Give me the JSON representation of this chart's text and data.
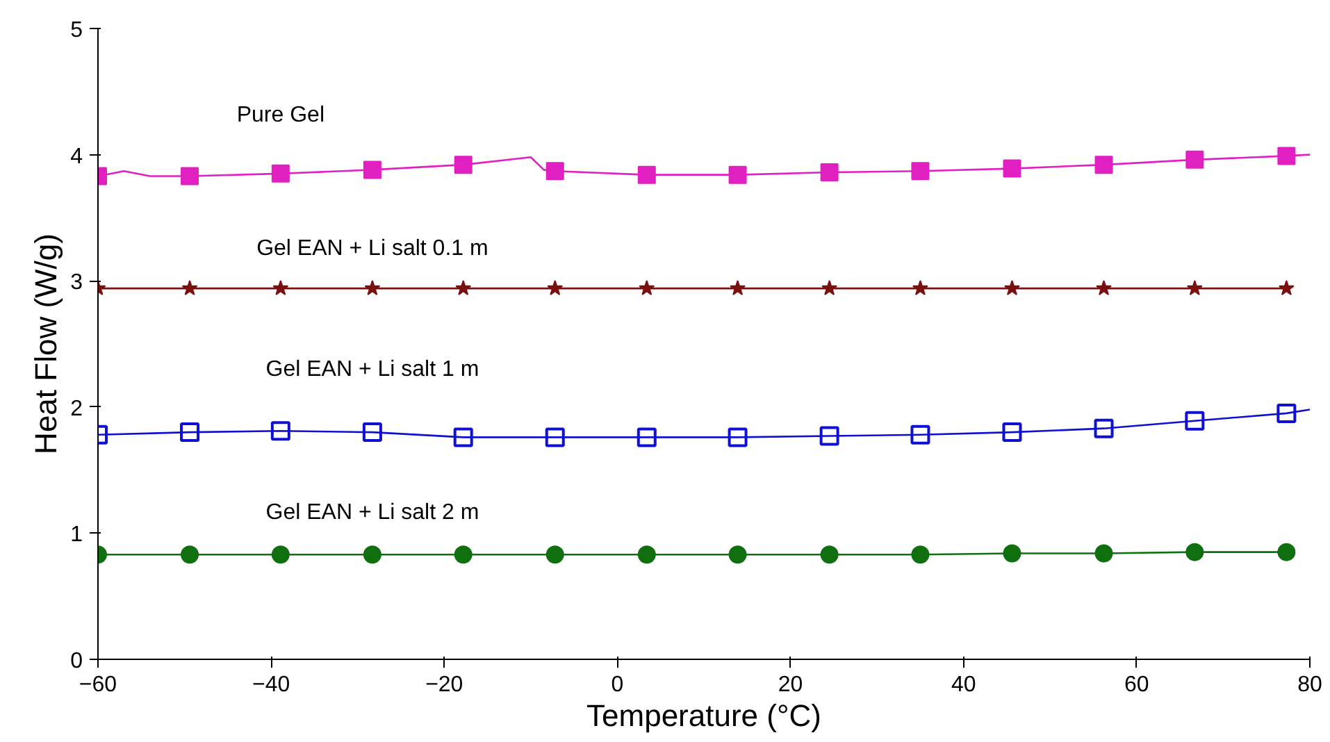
{
  "chart_data": {
    "type": "line",
    "xlabel": "Temperature (°C)",
    "ylabel": "Heat Flow (W/g)",
    "xlim": [
      -60,
      80
    ],
    "ylim": [
      0,
      5
    ],
    "xticks": [
      -60,
      -40,
      -20,
      0,
      20,
      40,
      60,
      80
    ],
    "yticks": [
      0,
      1,
      2,
      3,
      4,
      5
    ],
    "grid": false,
    "line_style": "solid",
    "series": [
      {
        "name": "Pure Gel",
        "color": "#e020c0",
        "marker": "none",
        "x": [
          -60,
          -57,
          -54,
          -49.4,
          -38.9,
          -28.3,
          -17.8,
          -10,
          -8.5,
          -7.2,
          3.4,
          13.9,
          24.5,
          35,
          45.6,
          56.2,
          66.7,
          77.3,
          80
        ],
        "values": [
          3.83,
          3.87,
          3.83,
          3.83,
          3.85,
          3.88,
          3.92,
          3.98,
          3.88,
          3.87,
          3.84,
          3.84,
          3.86,
          3.87,
          3.89,
          3.92,
          3.96,
          3.99,
          4.0
        ]
      },
      {
        "color": "#e020c0",
        "type": "scatter",
        "marker": "square",
        "x": [
          -60,
          -49.4,
          -38.9,
          -28.3,
          -17.8,
          -7.2,
          3.4,
          13.9,
          24.5,
          35,
          45.6,
          56.2,
          66.7,
          77.3
        ],
        "values": [
          3.83,
          3.83,
          3.85,
          3.88,
          3.92,
          3.87,
          3.84,
          3.84,
          3.86,
          3.87,
          3.89,
          3.92,
          3.96,
          3.99
        ]
      },
      {
        "name": "Gel EAN + Li salt 0.1 m",
        "color": "#7a1010",
        "marker": "star",
        "x": [
          -60,
          -49.4,
          -38.9,
          -28.3,
          -17.8,
          -7.2,
          3.4,
          13.9,
          24.5,
          35,
          45.6,
          56.2,
          66.7,
          77.3
        ],
        "values": [
          2.94,
          2.94,
          2.94,
          2.94,
          2.94,
          2.94,
          2.94,
          2.94,
          2.94,
          2.94,
          2.94,
          2.94,
          2.94,
          2.94
        ]
      },
      {
        "name": "Gel EAN + Li salt 1 m",
        "color": "#1010d0",
        "marker": "square_open",
        "x": [
          -60,
          -49.4,
          -38.9,
          -28.3,
          -17.8,
          -7.2,
          3.4,
          13.9,
          24.5,
          35,
          45.6,
          56.2,
          66.7,
          77.3,
          80
        ],
        "values": [
          1.78,
          1.8,
          1.81,
          1.8,
          1.76,
          1.76,
          1.76,
          1.76,
          1.77,
          1.78,
          1.8,
          1.83,
          1.89,
          1.95,
          1.98
        ]
      },
      {
        "name": "Gel EAN + Li salt 2 m",
        "color": "#107010",
        "marker": "circle",
        "x": [
          -60,
          -49.4,
          -38.9,
          -28.3,
          -17.8,
          -7.2,
          3.4,
          13.9,
          24.5,
          35,
          45.6,
          56.2,
          66.7,
          77.3
        ],
        "values": [
          0.83,
          0.83,
          0.83,
          0.83,
          0.83,
          0.83,
          0.83,
          0.83,
          0.83,
          0.83,
          0.84,
          0.84,
          0.85,
          0.85
        ]
      }
    ]
  }
}
